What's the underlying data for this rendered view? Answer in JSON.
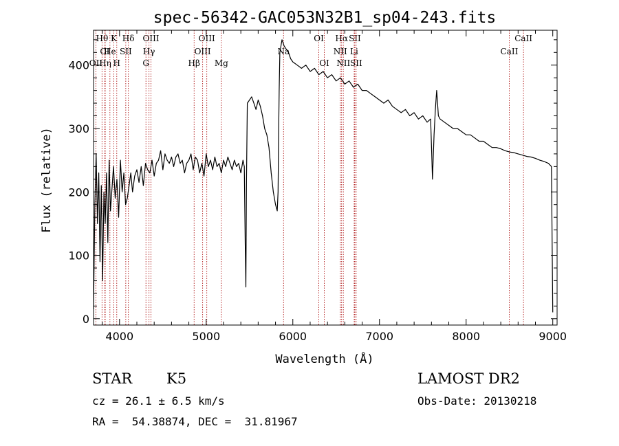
{
  "chart_data": {
    "type": "line",
    "title": "spec-56342-GAC053N32B1_sp04-243.fits",
    "xlabel": "Wavelength (Å)",
    "ylabel": "Flux (relative)",
    "xlim": [
      3700,
      9050
    ],
    "ylim": [
      -10,
      455
    ],
    "xticks": [
      4000,
      5000,
      6000,
      7000,
      8000,
      9000
    ],
    "yticks": [
      0,
      100,
      200,
      300,
      400
    ],
    "grid": false,
    "series": [
      {
        "x": [
          3700,
          3715,
          3730,
          3745,
          3760,
          3775,
          3790,
          3805,
          3820,
          3835,
          3850,
          3865,
          3880,
          3895,
          3910,
          3930,
          3950,
          3970,
          3990,
          4010,
          4030,
          4050,
          4070,
          4090,
          4110,
          4130,
          4150,
          4175,
          4200,
          4225,
          4250,
          4275,
          4300,
          4325,
          4350,
          4375,
          4400,
          4425,
          4450,
          4475,
          4500,
          4525,
          4550,
          4575,
          4600,
          4625,
          4650,
          4675,
          4700,
          4725,
          4750,
          4775,
          4800,
          4825,
          4850,
          4875,
          4900,
          4925,
          4950,
          4975,
          5000,
          5025,
          5050,
          5075,
          5100,
          5125,
          5150,
          5175,
          5200,
          5225,
          5250,
          5275,
          5300,
          5325,
          5350,
          5375,
          5400,
          5425,
          5440,
          5450,
          5458,
          5465,
          5475,
          5500,
          5525,
          5550,
          5575,
          5600,
          5625,
          5650,
          5675,
          5700,
          5725,
          5750,
          5775,
          5800,
          5820,
          5830,
          5836,
          5842,
          5850,
          5875,
          5900,
          5925,
          5950,
          5975,
          6000,
          6050,
          6100,
          6150,
          6200,
          6250,
          6300,
          6350,
          6400,
          6450,
          6500,
          6550,
          6600,
          6650,
          6700,
          6750,
          6800,
          6850,
          6900,
          6950,
          7000,
          7050,
          7100,
          7150,
          7200,
          7250,
          7300,
          7350,
          7400,
          7450,
          7500,
          7550,
          7590,
          7605,
          7612,
          7620,
          7630,
          7645,
          7660,
          7680,
          7700,
          7750,
          7800,
          7850,
          7900,
          7950,
          8000,
          8050,
          8100,
          8150,
          8200,
          8250,
          8300,
          8350,
          8400,
          8450,
          8500,
          8550,
          8600,
          8650,
          8700,
          8750,
          8800,
          8850,
          8900,
          8950,
          8985,
          9000
        ],
        "y": [
          15,
          180,
          260,
          150,
          230,
          90,
          210,
          60,
          200,
          150,
          230,
          120,
          250,
          170,
          200,
          240,
          190,
          220,
          160,
          250,
          200,
          230,
          180,
          190,
          210,
          230,
          200,
          225,
          235,
          215,
          240,
          210,
          245,
          235,
          230,
          250,
          225,
          245,
          250,
          265,
          235,
          260,
          250,
          245,
          255,
          240,
          255,
          260,
          245,
          250,
          230,
          245,
          250,
          260,
          235,
          255,
          250,
          230,
          245,
          225,
          260,
          240,
          250,
          235,
          255,
          240,
          245,
          230,
          250,
          240,
          255,
          245,
          235,
          250,
          240,
          245,
          230,
          250,
          240,
          120,
          50,
          220,
          340,
          345,
          350,
          340,
          330,
          345,
          335,
          320,
          300,
          290,
          270,
          230,
          200,
          180,
          170,
          200,
          290,
          360,
          420,
          440,
          430,
          425,
          420,
          410,
          405,
          400,
          395,
          400,
          390,
          395,
          385,
          390,
          380,
          385,
          375,
          380,
          370,
          375,
          365,
          370,
          360,
          360,
          355,
          350,
          345,
          340,
          345,
          335,
          330,
          325,
          330,
          320,
          325,
          315,
          320,
          310,
          315,
          250,
          220,
          250,
          290,
          330,
          360,
          320,
          315,
          310,
          305,
          300,
          300,
          295,
          290,
          290,
          285,
          280,
          280,
          275,
          270,
          270,
          268,
          265,
          263,
          262,
          260,
          258,
          256,
          255,
          253,
          250,
          248,
          245,
          240,
          10
        ]
      }
    ],
    "lines": [
      {
        "label": "Hθ",
        "x": 3798,
        "row": 0
      },
      {
        "label": "CI",
        "x": 3830,
        "row": 1
      },
      {
        "label": "OII",
        "x": 3727,
        "row": 2
      },
      {
        "label": "Hη",
        "x": 3835,
        "row": 2
      },
      {
        "label": "He",
        "x": 3889,
        "row": 1
      },
      {
        "label": "K",
        "x": 3934,
        "row": 0
      },
      {
        "label": "H",
        "x": 3968,
        "row": 2
      },
      {
        "label": "SII",
        "x": 4072,
        "row": 1
      },
      {
        "label": "Hδ",
        "x": 4102,
        "row": 0
      },
      {
        "label": "OIII",
        "x": 4363,
        "row": 0
      },
      {
        "label": "Hγ",
        "x": 4340,
        "row": 1
      },
      {
        "label": "G",
        "x": 4305,
        "row": 2
      },
      {
        "label": "Hβ",
        "x": 4861,
        "row": 2
      },
      {
        "label": "OIII",
        "x": 5007,
        "row": 0
      },
      {
        "label": "OIII",
        "x": 4959,
        "row": 1
      },
      {
        "label": "Mg",
        "x": 5175,
        "row": 2
      },
      {
        "label": "Na",
        "x": 5893,
        "row": 1
      },
      {
        "label": "OI",
        "x": 6300,
        "row": 0
      },
      {
        "label": "OI",
        "x": 6363,
        "row": 2
      },
      {
        "label": "Hα",
        "x": 6563,
        "row": 0
      },
      {
        "label": "SII",
        "x": 6716,
        "row": 0
      },
      {
        "label": "NII",
        "x": 6548,
        "row": 1
      },
      {
        "label": "Li",
        "x": 6708,
        "row": 1
      },
      {
        "label": "NII",
        "x": 6583,
        "row": 2
      },
      {
        "label": "SII",
        "x": 6731,
        "row": 2
      },
      {
        "label": "CaII",
        "x": 8662,
        "row": 0
      },
      {
        "label": "CaII",
        "x": 8498,
        "row": 1
      }
    ]
  },
  "info": {
    "class_text": "STAR",
    "subclass_text": "K5",
    "survey": "LAMOST DR2",
    "cz_text": "cz = 26.1 ± 6.5 km/s",
    "obs_date": "Obs-Date: 20130218",
    "coords": "RA =  54.38874, DEC =  31.81967"
  }
}
